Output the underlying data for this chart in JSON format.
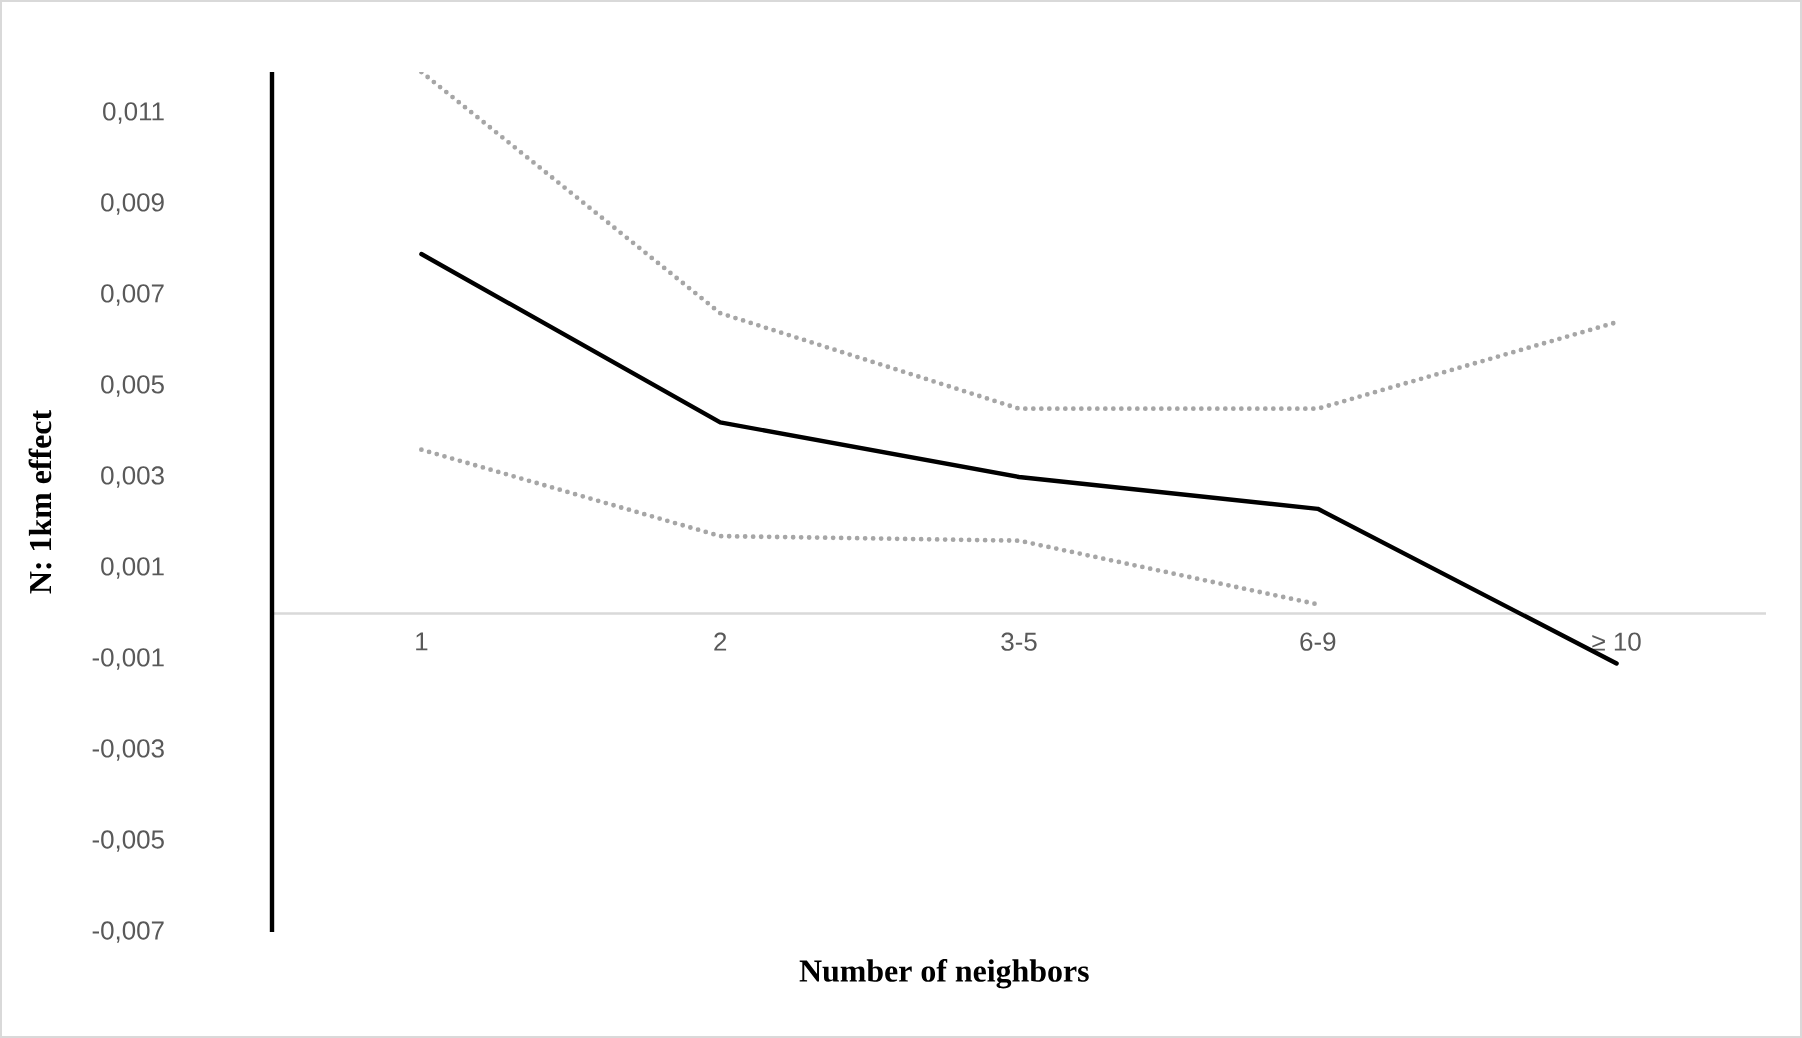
{
  "chart_data": {
    "type": "line",
    "xlabel": "Number of neighbors",
    "ylabel": "N: 1km effect",
    "categories": [
      "1",
      "2",
      "3-5",
      "6-9",
      "≥ 10"
    ],
    "series": [
      {
        "color": "#000000",
        "line_style": "solid",
        "values": [
          0.0079,
          0.0042,
          0.003,
          0.0023,
          -0.0011
        ]
      },
      {
        "color": "#a6a6a6",
        "line_style": "dotted",
        "values": [
          0.0119,
          0.0066,
          0.0045,
          0.0045,
          0.0064
        ]
      },
      {
        "color": "#a6a6a6",
        "line_style": "dotted",
        "values": [
          0.0036,
          0.0017,
          0.0016,
          0.0002,
          null
        ]
      }
    ],
    "ylim": [
      -0.007,
      0.0119
    ],
    "yticks": [
      {
        "value": 0.011,
        "label": "0,011"
      },
      {
        "value": 0.009,
        "label": "0,009"
      },
      {
        "value": 0.007,
        "label": "0,007"
      },
      {
        "value": 0.005,
        "label": "0,005"
      },
      {
        "value": 0.003,
        "label": "0,003"
      },
      {
        "value": 0.001,
        "label": "0,001"
      },
      {
        "value": -0.001,
        "label": "-0,001"
      },
      {
        "value": -0.003,
        "label": "-0,003"
      },
      {
        "value": -0.005,
        "label": "-0,005"
      },
      {
        "value": -0.007,
        "label": "-0,007"
      }
    ],
    "marker": "none"
  }
}
